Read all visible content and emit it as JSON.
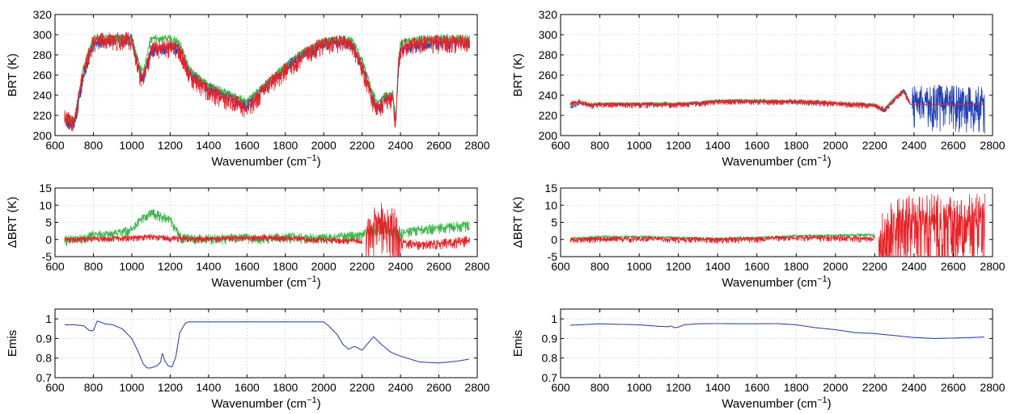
{
  "chart_data": [
    {
      "id": "left-top",
      "type": "line",
      "xlabel": "Wavenumber (cm",
      "xlabel_sup": "−1",
      "xlabel_end": ")",
      "ylabel": "BRT (K)",
      "xlim": [
        600,
        2800
      ],
      "ylim": [
        200,
        320
      ],
      "xticks": [
        600,
        800,
        1000,
        1200,
        1400,
        1600,
        1800,
        2000,
        2200,
        2400,
        2600,
        2800
      ],
      "yticks": [
        200,
        220,
        240,
        260,
        280,
        300,
        320
      ],
      "grid": true,
      "series": [
        {
          "color": "#1f3fb4",
          "noise": 8,
          "x": [
            650,
            700,
            750,
            800,
            900,
            1000,
            1040,
            1060,
            1100,
            1200,
            1250,
            1300,
            1400,
            1500,
            1600,
            1700,
            1800,
            1900,
            2000,
            2100,
            2150,
            2200,
            2250,
            2280,
            2320,
            2360,
            2375,
            2390,
            2400,
            2500,
            2600,
            2700,
            2760
          ],
          "y": [
            215,
            212,
            260,
            292,
            296,
            296,
            265,
            258,
            286,
            288,
            286,
            262,
            248,
            240,
            230,
            250,
            268,
            282,
            292,
            294,
            290,
            270,
            240,
            228,
            238,
            240,
            210,
            270,
            286,
            291,
            293,
            294,
            294
          ]
        },
        {
          "color": "#3bb54a",
          "noise": 6,
          "x": [
            650,
            700,
            750,
            800,
            900,
            1000,
            1040,
            1060,
            1100,
            1200,
            1250,
            1300,
            1400,
            1500,
            1600,
            1700,
            1800,
            1900,
            2000,
            2100,
            2150,
            2200,
            2250,
            2280,
            2320,
            2360,
            2375,
            2390,
            2400,
            2500,
            2600,
            2700,
            2760
          ],
          "y": [
            220,
            215,
            270,
            296,
            297,
            297,
            270,
            264,
            297,
            297,
            292,
            266,
            250,
            242,
            234,
            252,
            270,
            284,
            294,
            296,
            294,
            275,
            245,
            232,
            240,
            243,
            215,
            275,
            292,
            296,
            297,
            297,
            297
          ]
        },
        {
          "color": "#e52228",
          "noise": 12,
          "x": [
            650,
            700,
            750,
            800,
            900,
            1000,
            1040,
            1060,
            1100,
            1200,
            1250,
            1300,
            1400,
            1500,
            1600,
            1700,
            1800,
            1900,
            2000,
            2100,
            2150,
            2200,
            2250,
            2280,
            2320,
            2360,
            2375,
            2390,
            2400,
            2500,
            2600,
            2700,
            2760
          ],
          "y": [
            218,
            214,
            266,
            294,
            296,
            295,
            262,
            256,
            286,
            289,
            285,
            260,
            245,
            236,
            228,
            248,
            266,
            280,
            292,
            293,
            290,
            268,
            238,
            226,
            236,
            238,
            212,
            272,
            288,
            292,
            293,
            293,
            293
          ]
        }
      ]
    },
    {
      "id": "right-top",
      "type": "line",
      "xlabel": "Wavenumber (cm",
      "xlabel_sup": "−1",
      "xlabel_end": ")",
      "ylabel": "BRT (K)",
      "xlim": [
        600,
        2800
      ],
      "ylim": [
        200,
        320
      ],
      "xticks": [
        600,
        800,
        1000,
        1200,
        1400,
        1600,
        1800,
        2000,
        2200,
        2400,
        2600,
        2800
      ],
      "yticks": [
        200,
        220,
        240,
        260,
        280,
        300,
        320
      ],
      "grid": true,
      "series": [
        {
          "color": "#1f3fb4",
          "noise": 1.5,
          "x": [
            650,
            700,
            750,
            800,
            1000,
            1200,
            1300,
            1400,
            1600,
            1800,
            2000,
            2200,
            2250,
            2300,
            2350,
            2380
          ],
          "y": [
            228,
            232,
            230,
            231,
            231,
            231,
            232,
            234,
            234,
            233,
            232,
            230,
            224,
            236,
            246,
            232
          ]
        },
        {
          "color": "#1f3fb4",
          "noise": 30,
          "x": [
            2390,
            2500,
            2600,
            2700,
            2760
          ],
          "y": [
            232,
            232,
            232,
            232,
            232
          ]
        },
        {
          "color": "#3bb54a",
          "noise": 1.5,
          "x": [
            650,
            700,
            750,
            800,
            1000,
            1200,
            1300,
            1400,
            1600,
            1800,
            2000,
            2200,
            2250,
            2300,
            2350,
            2380
          ],
          "y": [
            230,
            233,
            231,
            232,
            232,
            232,
            233,
            235,
            235,
            234,
            232,
            231,
            226,
            238,
            244,
            232
          ]
        },
        {
          "color": "#e52228",
          "noise": 4,
          "x": [
            650,
            700,
            750,
            800,
            1000,
            1200,
            1300,
            1400,
            1600,
            1800,
            2000,
            2200,
            2250,
            2300,
            2350,
            2380
          ],
          "y": [
            232,
            234,
            230,
            231,
            231,
            231,
            232,
            234,
            234,
            234,
            232,
            230,
            226,
            236,
            244,
            232
          ]
        },
        {
          "color": "#e52228",
          "noise": 0,
          "x": [
            2380,
            2760
          ],
          "y": [
            231,
            231
          ]
        }
      ]
    },
    {
      "id": "left-mid",
      "type": "line",
      "xlabel": "Wavenumber (cm",
      "xlabel_sup": "−1",
      "xlabel_end": ")",
      "ylabel": "ΔBRT (K)",
      "xlim": [
        600,
        2800
      ],
      "ylim": [
        -5,
        15
      ],
      "xticks": [
        600,
        800,
        1000,
        1200,
        1400,
        1600,
        1800,
        2000,
        2200,
        2400,
        2600,
        2800
      ],
      "yticks": [
        -5,
        0,
        5,
        10,
        15
      ],
      "grid": true,
      "series": [
        {
          "color": "#3bb54a",
          "noise": 2,
          "x": [
            650,
            750,
            800,
            900,
            1000,
            1050,
            1100,
            1150,
            1200,
            1250,
            1300,
            1500,
            1800,
            2000,
            2100,
            2200,
            2250,
            2300,
            2380,
            2420,
            2500,
            2600,
            2700,
            2760
          ],
          "y": [
            0,
            0.5,
            1.5,
            1.5,
            3,
            6,
            8,
            7,
            6,
            1,
            0.3,
            0.5,
            0.8,
            0.5,
            1,
            1.5,
            3,
            4,
            2,
            2,
            3,
            3.5,
            4,
            4.5
          ]
        },
        {
          "color": "#e52228",
          "noise": 1.2,
          "x": [
            650,
            800,
            1000,
            1100,
            1200,
            1300,
            1500,
            1700,
            1900,
            2100,
            2200
          ],
          "y": [
            0,
            0.3,
            0.5,
            1,
            0.5,
            0.2,
            0.4,
            0.6,
            0.2,
            -0.3,
            -0.5
          ]
        },
        {
          "color": "#e52228",
          "noise": 10,
          "x": [
            2220,
            2260,
            2300,
            2340,
            2380,
            2400
          ],
          "y": [
            2,
            4,
            5,
            4,
            3,
            -1
          ]
        },
        {
          "color": "#e52228",
          "noise": 2,
          "x": [
            2400,
            2500,
            2600,
            2700,
            2760
          ],
          "y": [
            -1,
            -1.5,
            -1,
            -0.5,
            0
          ]
        }
      ]
    },
    {
      "id": "right-mid",
      "type": "line",
      "xlabel": "Wavenumber (cm",
      "xlabel_sup": "−1",
      "xlabel_end": ")",
      "ylabel": "ΔBRT (K)",
      "xlim": [
        600,
        2800
      ],
      "ylim": [
        -5,
        15
      ],
      "xticks": [
        600,
        800,
        1000,
        1200,
        1400,
        1600,
        1800,
        2000,
        2200,
        2400,
        2600,
        2800
      ],
      "yticks": [
        -5,
        0,
        5,
        10,
        15
      ],
      "grid": true,
      "series": [
        {
          "color": "#3bb54a",
          "noise": 0.6,
          "x": [
            650,
            800,
            1000,
            1200,
            1400,
            1600,
            1800,
            2000,
            2200
          ],
          "y": [
            0.2,
            0.8,
            0.8,
            0.5,
            0.2,
            0.5,
            1,
            1.2,
            1.5
          ]
        },
        {
          "color": "#e52228",
          "noise": 1.2,
          "x": [
            650,
            800,
            1000,
            1200,
            1400,
            1600,
            1800,
            2000,
            2200
          ],
          "y": [
            0,
            0.2,
            0.3,
            0.1,
            0,
            0.2,
            0.5,
            0.5,
            0.3
          ]
        },
        {
          "color": "#e52228",
          "noise": 14,
          "x": [
            2220,
            2300,
            2380,
            2450,
            2550,
            2650,
            2760
          ],
          "y": [
            1,
            3,
            5,
            5,
            5,
            5,
            5
          ]
        }
      ]
    },
    {
      "id": "left-bottom",
      "type": "line",
      "xlabel": "Wavenumber (cm",
      "xlabel_sup": "−1",
      "xlabel_end": ")",
      "ylabel": "Emis",
      "xlim": [
        600,
        2800
      ],
      "ylim": [
        0.7,
        1.05
      ],
      "xticks": [
        600,
        800,
        1000,
        1200,
        1400,
        1600,
        1800,
        2000,
        2200,
        2400,
        2600,
        2800
      ],
      "yticks": [
        0.7,
        0.8,
        0.9,
        1
      ],
      "ytick_labels": [
        "0.7",
        "0.8",
        "0.9",
        "1"
      ],
      "grid": true,
      "series": [
        {
          "color": "#3346b8",
          "noise": 0,
          "x": [
            650,
            700,
            750,
            780,
            800,
            820,
            860,
            900,
            950,
            1000,
            1030,
            1060,
            1080,
            1100,
            1130,
            1150,
            1160,
            1170,
            1190,
            1210,
            1230,
            1250,
            1280,
            1300,
            1400,
            1600,
            1800,
            2000,
            2030,
            2070,
            2100,
            2130,
            2160,
            2200,
            2230,
            2260,
            2300,
            2350,
            2400,
            2500,
            2600,
            2700,
            2760
          ],
          "y": [
            0.97,
            0.97,
            0.965,
            0.94,
            0.94,
            0.99,
            0.975,
            0.97,
            0.95,
            0.9,
            0.84,
            0.77,
            0.75,
            0.75,
            0.76,
            0.78,
            0.83,
            0.79,
            0.76,
            0.755,
            0.81,
            0.93,
            0.98,
            0.985,
            0.985,
            0.985,
            0.985,
            0.985,
            0.96,
            0.92,
            0.87,
            0.845,
            0.86,
            0.84,
            0.875,
            0.91,
            0.87,
            0.83,
            0.81,
            0.78,
            0.775,
            0.785,
            0.795
          ]
        }
      ]
    },
    {
      "id": "right-bottom",
      "type": "line",
      "xlabel": "Wavenumber (cm",
      "xlabel_sup": "−1",
      "xlabel_end": ")",
      "ylabel": "Emis",
      "xlim": [
        600,
        2800
      ],
      "ylim": [
        0.7,
        1.05
      ],
      "xticks": [
        600,
        800,
        1000,
        1200,
        1400,
        1600,
        1800,
        2000,
        2200,
        2400,
        2600,
        2800
      ],
      "yticks": [
        0.7,
        0.8,
        0.9,
        1
      ],
      "ytick_labels": [
        "0.7",
        "0.8",
        "0.9",
        "1"
      ],
      "grid": true,
      "series": [
        {
          "color": "#3346b8",
          "noise": 0,
          "x": [
            650,
            700,
            800,
            900,
            1000,
            1100,
            1150,
            1160,
            1180,
            1200,
            1230,
            1300,
            1400,
            1500,
            1600,
            1700,
            1800,
            1900,
            2000,
            2100,
            2200,
            2300,
            2400,
            2500,
            2600,
            2700,
            2760
          ],
          "y": [
            0.968,
            0.97,
            0.975,
            0.972,
            0.97,
            0.962,
            0.96,
            0.965,
            0.955,
            0.958,
            0.97,
            0.975,
            0.976,
            0.975,
            0.975,
            0.976,
            0.97,
            0.955,
            0.945,
            0.93,
            0.925,
            0.915,
            0.905,
            0.9,
            0.902,
            0.905,
            0.908
          ]
        }
      ]
    }
  ]
}
